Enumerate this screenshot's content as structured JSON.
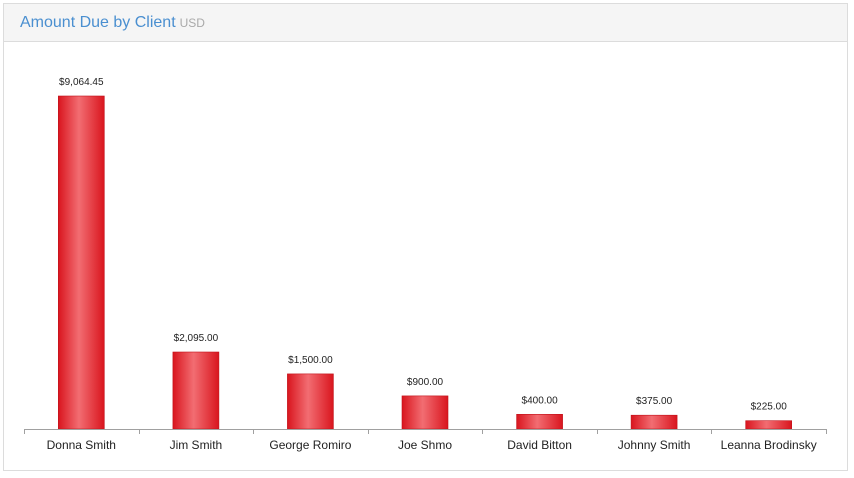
{
  "header": {
    "title": "Amount Due by Client",
    "unit": "USD"
  },
  "colors": {
    "bar_dark": "#d9151e",
    "bar_light": "#f26d72",
    "axis": "#a0a0a0"
  },
  "chart_data": {
    "type": "bar",
    "title": "Amount Due by Client",
    "xlabel": "",
    "ylabel": "",
    "categories": [
      "Donna Smith",
      "Jim Smith",
      "George Romiro",
      "Joe Shmo",
      "David Bitton",
      "Johnny Smith",
      "Leanna Brodinsky"
    ],
    "values": [
      9064.45,
      2095.0,
      1500.0,
      900.0,
      400.0,
      375.0,
      225.0
    ],
    "value_labels": [
      "$9,064.45",
      "$2,095.00",
      "$1,500.00",
      "$900.00",
      "$400.00",
      "$375.00",
      "$225.00"
    ],
    "ylim": [
      0,
      9064.45
    ],
    "grid": false,
    "legend": "none"
  }
}
